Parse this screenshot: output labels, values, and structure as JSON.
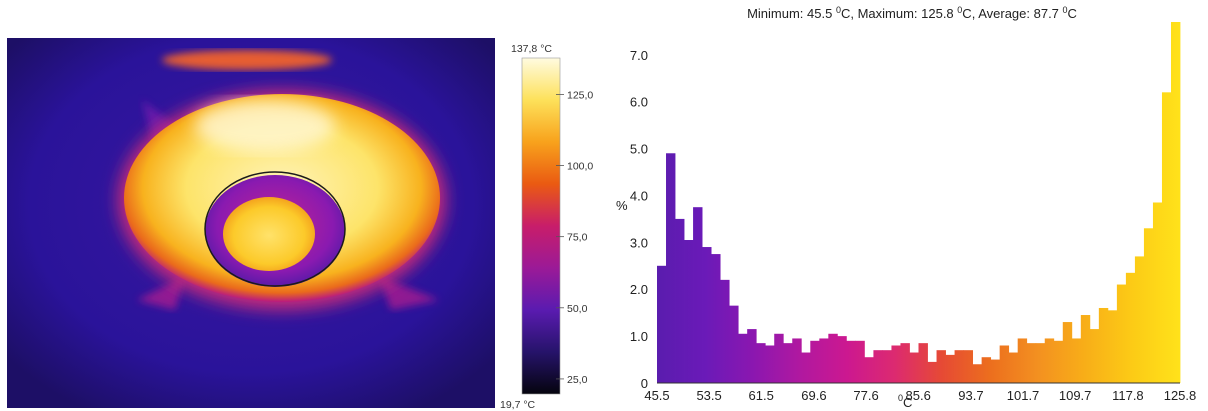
{
  "thermal_image": {
    "colors": {
      "background": "#1d0f66",
      "outer_ring": "#fce15a",
      "hot_core": "#fff3b8",
      "roi_circle": "#1b1b1b"
    }
  },
  "color_scale": {
    "max_label": "137,8 °C",
    "min_label": "19,7 °C",
    "tick_values": [
      125.0,
      100.0,
      75.0,
      50.0,
      25.0
    ],
    "tick_labels": [
      "125,0",
      "100,0",
      "75,0",
      "50,0",
      "25,0"
    ],
    "range": [
      19.7,
      137.8
    ],
    "gradient": [
      "#fffbe0",
      "#fde15a",
      "#f8a21c",
      "#ea5a12",
      "#c81d6a",
      "#9b1a97",
      "#5a1bb0",
      "#26136a",
      "#05040e"
    ]
  },
  "chart_data": {
    "type": "bar",
    "title": "Minimum: 45.5 ⁰C, Maximum: 125.8 ⁰C, Average: 87.7 ⁰C",
    "title_parts": {
      "min_label": "Minimum: 45.5 ",
      "max_label": ", Maximum: 125.8 ",
      "avg_label": ", Average: 87.7 ",
      "unit_sup": "0",
      "unit": "C"
    },
    "xlabel_sup": "0",
    "xlabel": "C",
    "ylabel": "%",
    "xlim": [
      45.5,
      125.8
    ],
    "ylim": [
      0,
      7.7
    ],
    "x_ticks": [
      45.5,
      53.5,
      61.5,
      69.6,
      77.6,
      85.6,
      93.7,
      101.7,
      109.7,
      117.8,
      125.8
    ],
    "x_tick_labels": [
      "45.5",
      "53.5",
      "61.5",
      "69.6",
      "77.6",
      "85.6",
      "93.7",
      "101.7",
      "109.7",
      "117.8",
      "125.8"
    ],
    "y_ticks": [
      0,
      1,
      2,
      3,
      4,
      5,
      6,
      7
    ],
    "y_tick_labels": [
      "0",
      "1.0",
      "2.0",
      "3.0",
      "4.0",
      "5.0",
      "6.0",
      "7.0"
    ],
    "values": [
      2.5,
      4.9,
      3.5,
      3.05,
      3.75,
      2.9,
      2.75,
      2.2,
      1.65,
      1.05,
      1.15,
      0.85,
      0.8,
      1.05,
      0.85,
      0.95,
      0.65,
      0.9,
      0.95,
      1.05,
      1.0,
      0.9,
      0.9,
      0.55,
      0.7,
      0.7,
      0.8,
      0.85,
      0.65,
      0.85,
      0.45,
      0.7,
      0.6,
      0.7,
      0.7,
      0.4,
      0.55,
      0.5,
      0.8,
      0.65,
      0.95,
      0.85,
      0.85,
      0.95,
      0.9,
      1.3,
      0.95,
      1.45,
      1.15,
      1.6,
      1.55,
      2.1,
      2.35,
      2.7,
      3.3,
      3.85,
      6.2,
      7.7
    ],
    "gradient": [
      "#5a1cae",
      "#6a1ab8",
      "#8a17b0",
      "#b018a0",
      "#cc1890",
      "#dc2a70",
      "#e64a34",
      "#ec6e1e",
      "#f39020",
      "#f8ae18",
      "#fccb16",
      "#ffe21a"
    ],
    "axis_color": "#333333",
    "grid": false
  }
}
